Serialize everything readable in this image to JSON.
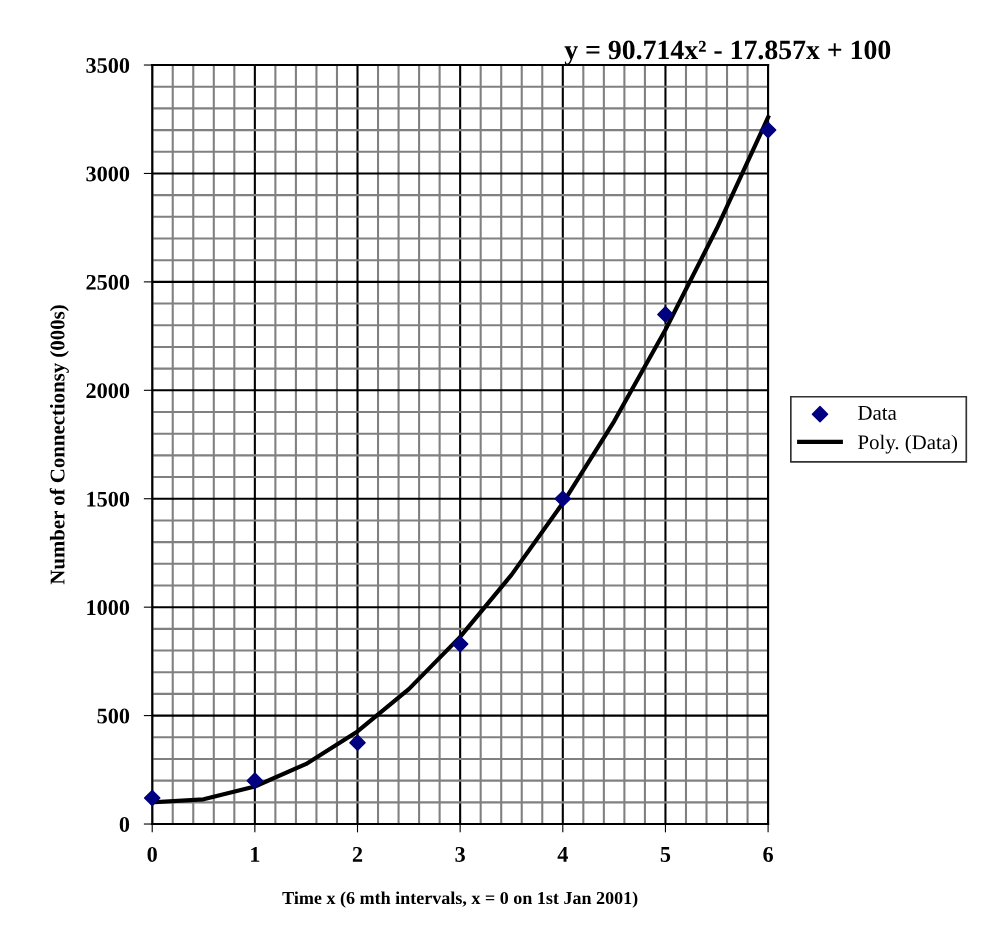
{
  "chart_data": {
    "type": "scatter",
    "title": "y = 90.714x² - 17.857x + 100",
    "xlabel": "Time x (6 mth intervals, x = 0 on 1st Jan 2001)",
    "ylabel": "Number of Connectionsy (000s)",
    "x": [
      0,
      1,
      2,
      3,
      4,
      5,
      6
    ],
    "series": [
      {
        "name": "Data",
        "color": "#000080",
        "marker": "diamond",
        "values": [
          120,
          200,
          375,
          830,
          1500,
          2350,
          3200
        ]
      },
      {
        "name": "Poly. (Data)",
        "type": "line",
        "color": "#000000",
        "marker": "none",
        "line_style": "solid",
        "x": [
          0,
          0.5,
          1,
          1.5,
          2,
          2.5,
          3,
          3.5,
          4,
          4.5,
          5,
          5.5,
          6
        ],
        "values": [
          100,
          114,
          173,
          277,
          427,
          622,
          863,
          1149,
          1480,
          1857,
          2279,
          2746,
          3259
        ]
      }
    ],
    "xlim": [
      0,
      6
    ],
    "xticks": [
      0,
      1,
      2,
      3,
      4,
      5,
      6
    ],
    "ylim": [
      0,
      3500
    ],
    "yticks": [
      0,
      500,
      1000,
      1500,
      2000,
      2500,
      3000,
      3500
    ],
    "grid": true,
    "legend": "right"
  }
}
